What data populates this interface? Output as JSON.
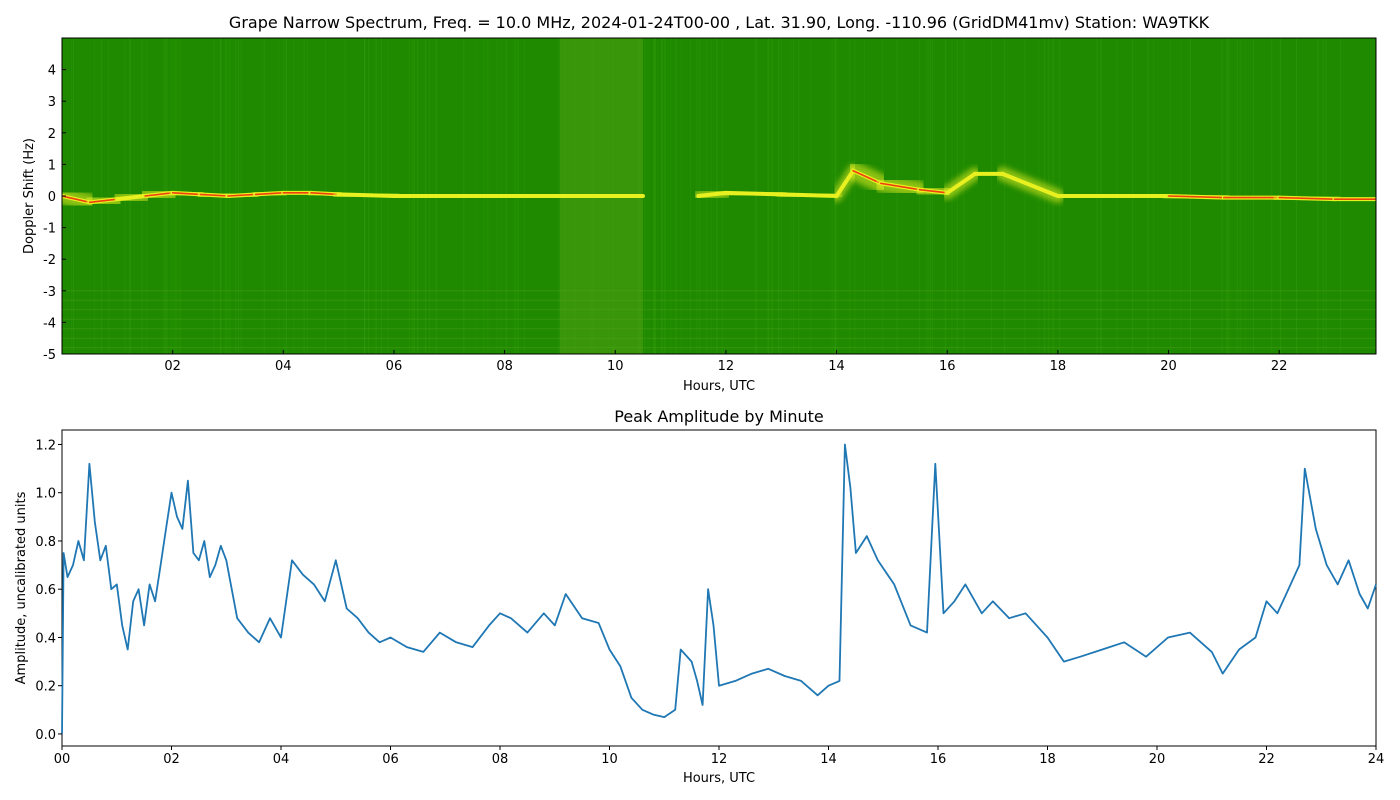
{
  "chart_data": [
    {
      "type": "heatmap",
      "title": "Grape Narrow Spectrum, Freq. = 10.0 MHz, 2024-01-24T00-00 , Lat.  31.90, Long. -110.96 (GridDM41mv) Station: WA9TKK",
      "xlabel": "Hours, UTC",
      "ylabel": "Doppler Shift (Hz)",
      "xlim": [
        0,
        23.75
      ],
      "ylim": [
        -5,
        5
      ],
      "x_ticks": [
        {
          "value": 2,
          "label": "02"
        },
        {
          "value": 4,
          "label": "04"
        },
        {
          "value": 6,
          "label": "06"
        },
        {
          "value": 8,
          "label": "08"
        },
        {
          "value": 10,
          "label": "10"
        },
        {
          "value": 12,
          "label": "12"
        },
        {
          "value": 14,
          "label": "14"
        },
        {
          "value": 16,
          "label": "16"
        },
        {
          "value": 18,
          "label": "18"
        },
        {
          "value": 20,
          "label": "20"
        },
        {
          "value": 22,
          "label": "22"
        }
      ],
      "y_ticks": [
        {
          "value": 4,
          "label": "4"
        },
        {
          "value": 3,
          "label": "3"
        },
        {
          "value": 2,
          "label": "2"
        },
        {
          "value": 1,
          "label": "1"
        },
        {
          "value": 0,
          "label": "0"
        },
        {
          "value": -1,
          "label": "-1"
        },
        {
          "value": -2,
          "label": "-2"
        },
        {
          "value": -3,
          "label": "-3"
        },
        {
          "value": -4,
          "label": "-4"
        },
        {
          "value": -5,
          "label": "-5"
        }
      ],
      "colors": {
        "background": "#1f8a00",
        "noise": "#2e9a0a",
        "signal_low": "#e8f020",
        "signal_high": "#f04010"
      },
      "carrier_trace": {
        "x": [
          0,
          0.5,
          1,
          1.5,
          2,
          2.5,
          3,
          3.5,
          4,
          4.5,
          5,
          6,
          7,
          8,
          9,
          10,
          10.5,
          11,
          11.5,
          12,
          13,
          14,
          14.3,
          14.8,
          15.5,
          16,
          16.5,
          17,
          18,
          19,
          20,
          21,
          22,
          23,
          23.75
        ],
        "y": [
          0,
          -0.2,
          -0.1,
          0,
          0.1,
          0.05,
          0,
          0.05,
          0.1,
          0.1,
          0.05,
          0,
          0,
          0,
          0,
          0,
          0,
          0,
          0,
          0.1,
          0.05,
          0,
          0.8,
          0.4,
          0.2,
          0.1,
          0.7,
          0.7,
          0,
          0,
          0,
          -0.05,
          -0.05,
          -0.1,
          -0.1
        ],
        "strength": [
          0.8,
          0.9,
          0.6,
          0.7,
          0.7,
          0.8,
          0.7,
          0.7,
          0.8,
          0.7,
          0.6,
          0.55,
          0.5,
          0.6,
          0.5,
          0.55,
          0.5,
          0,
          0.4,
          0.45,
          0.4,
          0.4,
          0.9,
          0.8,
          0.7,
          0.5,
          0.6,
          0.55,
          0.55,
          0.6,
          0.65,
          0.65,
          0.7,
          0.75,
          0.7
        ]
      },
      "gaps": [
        [
          10.5,
          11.0
        ],
        [
          11.4,
          11.55
        ],
        [
          11.8,
          11.9
        ]
      ]
    },
    {
      "type": "line",
      "title": "Peak Amplitude by Minute",
      "xlabel": "Hours, UTC",
      "ylabel": "Amplitude, uncalibrated units",
      "xlim": [
        0,
        24
      ],
      "ylim": [
        -0.05,
        1.26
      ],
      "x_ticks": [
        {
          "value": 0,
          "label": "00"
        },
        {
          "value": 2,
          "label": "02"
        },
        {
          "value": 4,
          "label": "04"
        },
        {
          "value": 6,
          "label": "06"
        },
        {
          "value": 8,
          "label": "08"
        },
        {
          "value": 10,
          "label": "10"
        },
        {
          "value": 12,
          "label": "12"
        },
        {
          "value": 14,
          "label": "14"
        },
        {
          "value": 16,
          "label": "16"
        },
        {
          "value": 18,
          "label": "18"
        },
        {
          "value": 20,
          "label": "20"
        },
        {
          "value": 22,
          "label": "22"
        },
        {
          "value": 24,
          "label": "24"
        }
      ],
      "y_ticks": [
        {
          "value": 0.0,
          "label": "0.0"
        },
        {
          "value": 0.2,
          "label": "0.2"
        },
        {
          "value": 0.4,
          "label": "0.4"
        },
        {
          "value": 0.6,
          "label": "0.6"
        },
        {
          "value": 0.8,
          "label": "0.8"
        },
        {
          "value": 1.0,
          "label": "1.0"
        },
        {
          "value": 1.2,
          "label": "1.2"
        }
      ],
      "color": "#1f77b4",
      "series": [
        {
          "x": [
            0,
            0.03,
            0.1,
            0.2,
            0.3,
            0.4,
            0.5,
            0.55,
            0.6,
            0.7,
            0.8,
            0.9,
            1.0,
            1.1,
            1.2,
            1.3,
            1.4,
            1.5,
            1.6,
            1.7,
            1.8,
            1.9,
            2.0,
            2.1,
            2.2,
            2.3,
            2.4,
            2.5,
            2.6,
            2.7,
            2.8,
            2.9,
            3.0,
            3.2,
            3.4,
            3.6,
            3.8,
            4.0,
            4.2,
            4.4,
            4.6,
            4.8,
            5.0,
            5.2,
            5.4,
            5.6,
            5.8,
            6.0,
            6.3,
            6.6,
            6.9,
            7.2,
            7.5,
            7.8,
            8.0,
            8.2,
            8.5,
            8.8,
            9.0,
            9.2,
            9.5,
            9.8,
            10.0,
            10.2,
            10.4,
            10.6,
            10.8,
            11.0,
            11.2,
            11.3,
            11.5,
            11.6,
            11.7,
            11.8,
            11.9,
            12.0,
            12.3,
            12.6,
            12.9,
            13.2,
            13.5,
            13.8,
            14.0,
            14.2,
            14.3,
            14.4,
            14.5,
            14.7,
            14.9,
            15.2,
            15.5,
            15.8,
            15.95,
            16.1,
            16.3,
            16.5,
            16.8,
            17.0,
            17.3,
            17.6,
            18.0,
            18.3,
            18.6,
            19.0,
            19.4,
            19.8,
            20.2,
            20.6,
            21.0,
            21.2,
            21.5,
            21.8,
            22.0,
            22.2,
            22.4,
            22.6,
            22.7,
            22.9,
            23.1,
            23.3,
            23.5,
            23.7,
            23.85,
            24.0
          ],
          "y": [
            0.0,
            0.75,
            0.65,
            0.7,
            0.8,
            0.72,
            1.12,
            1.0,
            0.88,
            0.72,
            0.78,
            0.6,
            0.62,
            0.45,
            0.35,
            0.55,
            0.6,
            0.45,
            0.62,
            0.55,
            0.7,
            0.85,
            1.0,
            0.9,
            0.85,
            1.05,
            0.75,
            0.72,
            0.8,
            0.65,
            0.7,
            0.78,
            0.72,
            0.48,
            0.42,
            0.38,
            0.48,
            0.4,
            0.72,
            0.66,
            0.62,
            0.55,
            0.72,
            0.52,
            0.48,
            0.42,
            0.38,
            0.4,
            0.36,
            0.34,
            0.42,
            0.38,
            0.36,
            0.45,
            0.5,
            0.48,
            0.42,
            0.5,
            0.45,
            0.58,
            0.48,
            0.46,
            0.35,
            0.28,
            0.15,
            0.1,
            0.08,
            0.07,
            0.1,
            0.35,
            0.3,
            0.22,
            0.12,
            0.6,
            0.45,
            0.2,
            0.22,
            0.25,
            0.27,
            0.24,
            0.22,
            0.16,
            0.2,
            0.22,
            1.2,
            1.02,
            0.75,
            0.82,
            0.72,
            0.62,
            0.45,
            0.42,
            1.12,
            0.5,
            0.55,
            0.62,
            0.5,
            0.55,
            0.48,
            0.5,
            0.4,
            0.3,
            0.32,
            0.35,
            0.38,
            0.32,
            0.4,
            0.42,
            0.34,
            0.25,
            0.35,
            0.4,
            0.55,
            0.5,
            0.6,
            0.7,
            1.1,
            0.85,
            0.7,
            0.62,
            0.72,
            0.58,
            0.52,
            0.62
          ]
        }
      ]
    }
  ]
}
